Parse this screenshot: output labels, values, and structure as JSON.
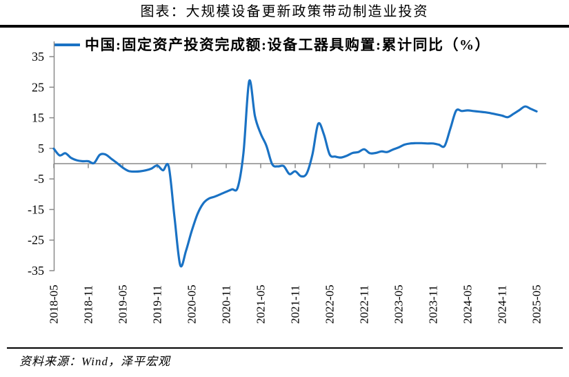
{
  "title": "图表：大规模设备更新政策带动制造业投资",
  "legend": {
    "label": "中国:固定资产投资完成额:设备工器具购置:累计同比（%）"
  },
  "footer": {
    "source": "资料来源：Wind，泽平宏观"
  },
  "colors": {
    "line": "#1a72c4",
    "axis": "#898989",
    "rule": "#000000",
    "text": "#000000"
  },
  "chart_data": {
    "type": "line",
    "title": "图表：大规模设备更新政策带动制造业投资",
    "smoothed": true,
    "grid": "zero-line-only",
    "legend_position": "top",
    "ylim": [
      -35,
      35
    ],
    "y_ticks": [
      35,
      25,
      15,
      5,
      -5,
      -15,
      -25,
      -35
    ],
    "x_tick_labels": [
      "2018-05",
      "2018-11",
      "2019-05",
      "2019-11",
      "2020-05",
      "2020-11",
      "2021-05",
      "2021-11",
      "2022-05",
      "2022-11",
      "2023-05",
      "2023-11",
      "2024-05",
      "2024-11",
      "2025-05"
    ],
    "x": [
      "2018-05",
      "2018-06",
      "2018-07",
      "2018-08",
      "2018-09",
      "2018-10",
      "2018-11",
      "2018-12",
      "2019-01",
      "2019-02",
      "2019-03",
      "2019-04",
      "2019-05",
      "2019-06",
      "2019-07",
      "2019-08",
      "2019-09",
      "2019-10",
      "2019-11",
      "2019-12",
      "2020-01",
      "2020-02",
      "2020-03",
      "2020-04",
      "2020-05",
      "2020-06",
      "2020-07",
      "2020-08",
      "2020-09",
      "2020-10",
      "2020-11",
      "2020-12",
      "2021-01",
      "2021-02",
      "2021-03",
      "2021-04",
      "2021-05",
      "2021-06",
      "2021-07",
      "2021-08",
      "2021-09",
      "2021-10",
      "2021-11",
      "2021-12",
      "2022-01",
      "2022-02",
      "2022-03",
      "2022-04",
      "2022-05",
      "2022-06",
      "2022-07",
      "2022-08",
      "2022-09",
      "2022-10",
      "2022-11",
      "2022-12",
      "2023-01",
      "2023-02",
      "2023-03",
      "2023-04",
      "2023-05",
      "2023-06",
      "2023-07",
      "2023-08",
      "2023-09",
      "2023-10",
      "2023-11",
      "2023-12",
      "2024-01",
      "2024-02",
      "2024-03",
      "2024-04",
      "2024-05",
      "2024-06",
      "2024-07",
      "2024-08",
      "2024-09",
      "2024-10",
      "2024-11",
      "2024-12",
      "2025-01",
      "2025-02",
      "2025-03",
      "2025-04",
      "2025-05"
    ],
    "series": [
      {
        "name": "中国:固定资产投资完成额:设备工器具购置:累计同比（%）",
        "color": "#1a72c4",
        "values": [
          4.9,
          2.7,
          3.4,
          1.9,
          1.1,
          0.8,
          0.8,
          0.2,
          2.9,
          3.0,
          1.6,
          0.2,
          -1.3,
          -2.4,
          -2.6,
          -2.5,
          -2.2,
          -1.6,
          -0.6,
          -2.2,
          -1.0,
          -17.5,
          -33.2,
          -28.5,
          -22.0,
          -16.5,
          -13.0,
          -11.4,
          -10.8,
          -10.0,
          -9.2,
          -8.4,
          -7.8,
          3.5,
          27.0,
          15.5,
          9.8,
          5.8,
          -0.2,
          -0.9,
          -0.8,
          -3.4,
          -2.5,
          -4.1,
          -3.2,
          3.0,
          13.0,
          9.5,
          3.0,
          2.3,
          2.0,
          2.6,
          3.5,
          3.8,
          4.7,
          3.4,
          3.5,
          4.0,
          3.8,
          4.6,
          5.3,
          6.2,
          6.6,
          6.7,
          6.7,
          6.6,
          6.6,
          6.2,
          5.8,
          11.5,
          17.3,
          17.2,
          17.4,
          17.2,
          17.0,
          16.8,
          16.5,
          16.1,
          15.7,
          15.2,
          16.3,
          17.5,
          18.7,
          17.9,
          17.1
        ]
      }
    ]
  }
}
